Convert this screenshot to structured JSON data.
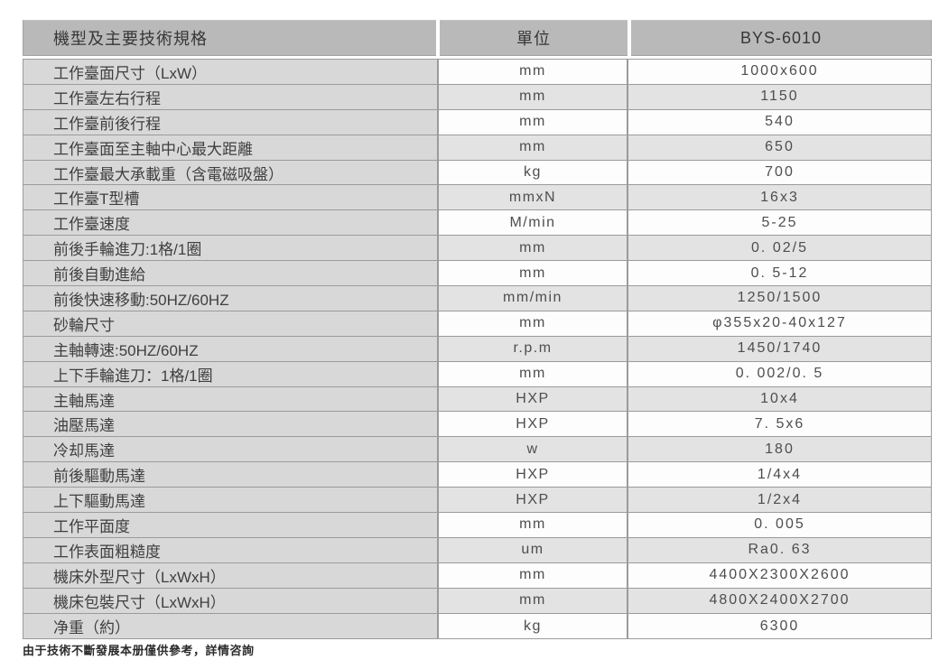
{
  "table": {
    "columns": [
      "機型及主要技術規格",
      "單位",
      "BYS-6010"
    ],
    "model": "BYS-6010",
    "rows": [
      {
        "spec": "工作臺面尺寸（LxW）",
        "unit": "mm",
        "value": "1000x600"
      },
      {
        "spec": "工作臺左右行程",
        "unit": "mm",
        "value": "1150"
      },
      {
        "spec": "工作臺前後行程",
        "unit": "mm",
        "value": "540"
      },
      {
        "spec": "工作臺面至主軸中心最大距離",
        "unit": "mm",
        "value": "650"
      },
      {
        "spec": "工作臺最大承載重（含電磁吸盤）",
        "unit": "kg",
        "value": "700"
      },
      {
        "spec": "工作臺T型槽",
        "unit": "mmxN",
        "value": "16x3"
      },
      {
        "spec": "工作臺速度",
        "unit": "M/min",
        "value": "5-25"
      },
      {
        "spec": "前後手輪進刀:1格/1圈",
        "unit": "mm",
        "value": "0. 02/5"
      },
      {
        "spec": "前後自動進給",
        "unit": "mm",
        "value": "0. 5-12"
      },
      {
        "spec": "前後快速移動:50HZ/60HZ",
        "unit": "mm/min",
        "value": "1250/1500"
      },
      {
        "spec": "砂輪尺寸",
        "unit": "mm",
        "value": "φ355x20-40x127"
      },
      {
        "spec": "主軸轉速:50HZ/60HZ",
        "unit": "r.p.m",
        "value": "1450/1740"
      },
      {
        "spec": "上下手輪進刀：1格/1圈",
        "unit": "mm",
        "value": "0. 002/0. 5"
      },
      {
        "spec": "主軸馬達",
        "unit": "HXP",
        "value": "10x4"
      },
      {
        "spec": "油壓馬達",
        "unit": "HXP",
        "value": "7. 5x6"
      },
      {
        "spec": "冷却馬達",
        "unit": "w",
        "value": "180"
      },
      {
        "spec": "前後驅動馬達",
        "unit": "HXP",
        "value": "1/4x4"
      },
      {
        "spec": "上下驅動馬達",
        "unit": "HXP",
        "value": "1/2x4"
      },
      {
        "spec": "工作平面度",
        "unit": "mm",
        "value": "0. 005"
      },
      {
        "spec": "工作表面粗糙度",
        "unit": "um",
        "value": "Ra0. 63"
      },
      {
        "spec": "機床外型尺寸（LxWxH）",
        "unit": "mm",
        "value": "4400X2300X2600"
      },
      {
        "spec": "機床包裝尺寸（LxWxH）",
        "unit": "mm",
        "value": "4800X2400X2700"
      },
      {
        "spec": "净重（約）",
        "unit": "kg",
        "value": "6300"
      }
    ]
  },
  "footer": {
    "note": "由于技術不斷發展本册僅供參考，詳情咨詢"
  },
  "colors": {
    "header_bg": "#b9b9b9",
    "label_column_bg": "#d8d8d8",
    "row_alt_bg": "#e3e3e3",
    "border": "#9b9b9b"
  }
}
